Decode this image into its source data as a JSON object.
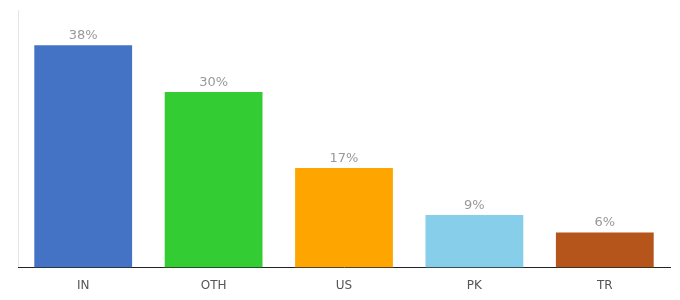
{
  "chart_data": {
    "type": "bar",
    "categories": [
      "IN",
      "OTH",
      "US",
      "PK",
      "TR"
    ],
    "values": [
      38,
      30,
      17,
      9,
      6
    ],
    "value_labels": [
      "38%",
      "30%",
      "17%",
      "9%",
      "6%"
    ],
    "colors": [
      "#4472C4",
      "#33CC33",
      "#FFA500",
      "#87CEEB",
      "#B5541B"
    ],
    "ylim": [
      0,
      44
    ],
    "data_labels": true,
    "tick_labels": "x",
    "grid": false
  }
}
